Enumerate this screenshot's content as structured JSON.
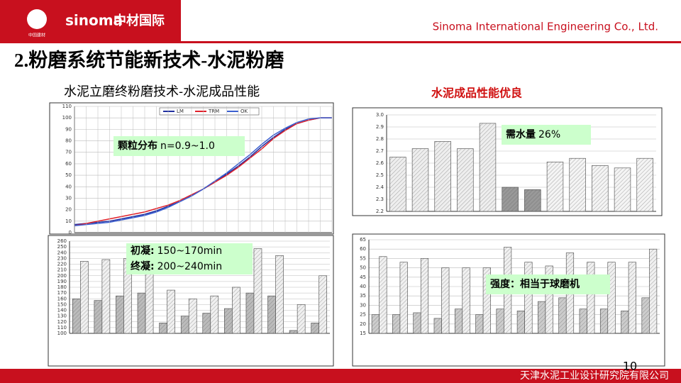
{
  "header": {
    "logo_en": "sinoma",
    "logo_cn": "中材国际",
    "logo_small": "中国建材",
    "company": "Sinoma International Engineering Co., Ltd.",
    "title": "2.粉磨系统节能新技术-水泥粉磨",
    "subtitle": "水泥立磨终粉磨技术-水泥成品性能",
    "highlight": "水泥成品性能优良"
  },
  "footer": {
    "company": "天津水泥工业设计研究院有限公司",
    "page": "10"
  },
  "chart_data": [
    {
      "type": "line",
      "categories": [
        null,
        null,
        null,
        null,
        null,
        null,
        null,
        null,
        null,
        null,
        null,
        null,
        null,
        null,
        null,
        null,
        null,
        null,
        null,
        null,
        null,
        null,
        null
      ],
      "series": [
        {
          "name": "LM",
          "color": "#1f2fa0",
          "values": [
            7,
            8,
            9,
            10,
            12,
            14,
            16,
            19,
            23,
            27,
            32,
            38,
            44,
            51,
            58,
            66,
            75,
            83,
            90,
            95,
            98,
            100,
            100
          ]
        },
        {
          "name": "TRM",
          "color": "#e0202a",
          "values": [
            6,
            8,
            10,
            12,
            14,
            16,
            18,
            21,
            24,
            28,
            33,
            38,
            44,
            50,
            57,
            65,
            73,
            82,
            89,
            95,
            98,
            100,
            100
          ]
        },
        {
          "name": "OK",
          "color": "#3a5fd0",
          "values": [
            6,
            7,
            8,
            9,
            11,
            13,
            15,
            18,
            22,
            27,
            32,
            38,
            45,
            52,
            60,
            68,
            77,
            85,
            91,
            96,
            99,
            100,
            100
          ]
        }
      ],
      "ylim": [
        0,
        110
      ],
      "yticks": [
        0,
        10,
        20,
        30,
        40,
        50,
        60,
        70,
        80,
        90,
        100,
        110
      ],
      "grid": true,
      "annotations": [
        {
          "label": "颗粒分布",
          "text": "n=0.9~1.0"
        }
      ]
    },
    {
      "type": "bar",
      "categories": [
        null,
        null,
        null,
        null,
        null,
        null,
        null,
        null,
        null,
        null,
        null,
        null
      ],
      "values": [
        2.65,
        2.72,
        2.78,
        2.72,
        2.93,
        2.4,
        2.38,
        2.61,
        2.64,
        2.58,
        2.56,
        2.64
      ],
      "colors": [
        "#eeeeee",
        "#eeeeee",
        "#eeeeee",
        "#eeeeee",
        "#eeeeee",
        "#999999",
        "#999999",
        "#f4f4f4",
        "#f4f4f4",
        "#f4f4f4",
        "#f4f4f4",
        "#f4f4f4"
      ],
      "ylim": [
        2.2,
        3.0
      ],
      "yticks": [
        2.2,
        2.3,
        2.4,
        2.5,
        2.6,
        2.7,
        2.8,
        2.9,
        {
          "value": 3,
          "label": "3.0"
        }
      ],
      "grid": true,
      "annotations": [
        {
          "label": "需水量",
          "text": "26%"
        }
      ]
    },
    {
      "type": "bar",
      "categories": [
        null,
        null,
        null,
        null,
        null,
        null,
        null,
        null,
        null,
        null,
        null,
        null
      ],
      "series": [
        {
          "color": "#bbbbbb",
          "values": [
            160,
            157,
            165,
            170,
            118,
            130,
            135,
            143,
            170,
            165,
            105,
            118
          ]
        },
        {
          "color": "#f0f0f0",
          "values": [
            225,
            228,
            230,
            225,
            175,
            160,
            165,
            180,
            247,
            235,
            150,
            200
          ]
        }
      ],
      "ylim": [
        100,
        260
      ],
      "yticks": [
        100,
        110,
        120,
        130,
        140,
        150,
        160,
        170,
        180,
        190,
        200,
        210,
        220,
        230,
        240,
        250,
        260
      ],
      "grid": true,
      "annotations": [
        {
          "label": "初凝:",
          "text": "150~170min"
        },
        {
          "label": "终凝:",
          "text": "200~240min"
        }
      ]
    },
    {
      "type": "bar",
      "categories": [
        null,
        null,
        null,
        null,
        null,
        null,
        null,
        null,
        null,
        null,
        null,
        null,
        null,
        null
      ],
      "series": [
        {
          "color": "#cccccc",
          "values": [
            25,
            25,
            26,
            23,
            28,
            25,
            28,
            27,
            32,
            34,
            28,
            28,
            27,
            34
          ]
        },
        {
          "color": "#f0f0f0",
          "values": [
            56,
            53,
            55,
            50,
            50,
            50,
            61,
            53,
            51,
            58,
            53,
            53,
            53,
            60
          ]
        }
      ],
      "ylim": [
        15,
        65
      ],
      "yticks": [
        15,
        20,
        25,
        30,
        35,
        40,
        45,
        50,
        55,
        60,
        65
      ],
      "grid": true,
      "annotations": [
        {
          "label": "强度：相当于球磨机"
        }
      ]
    }
  ]
}
